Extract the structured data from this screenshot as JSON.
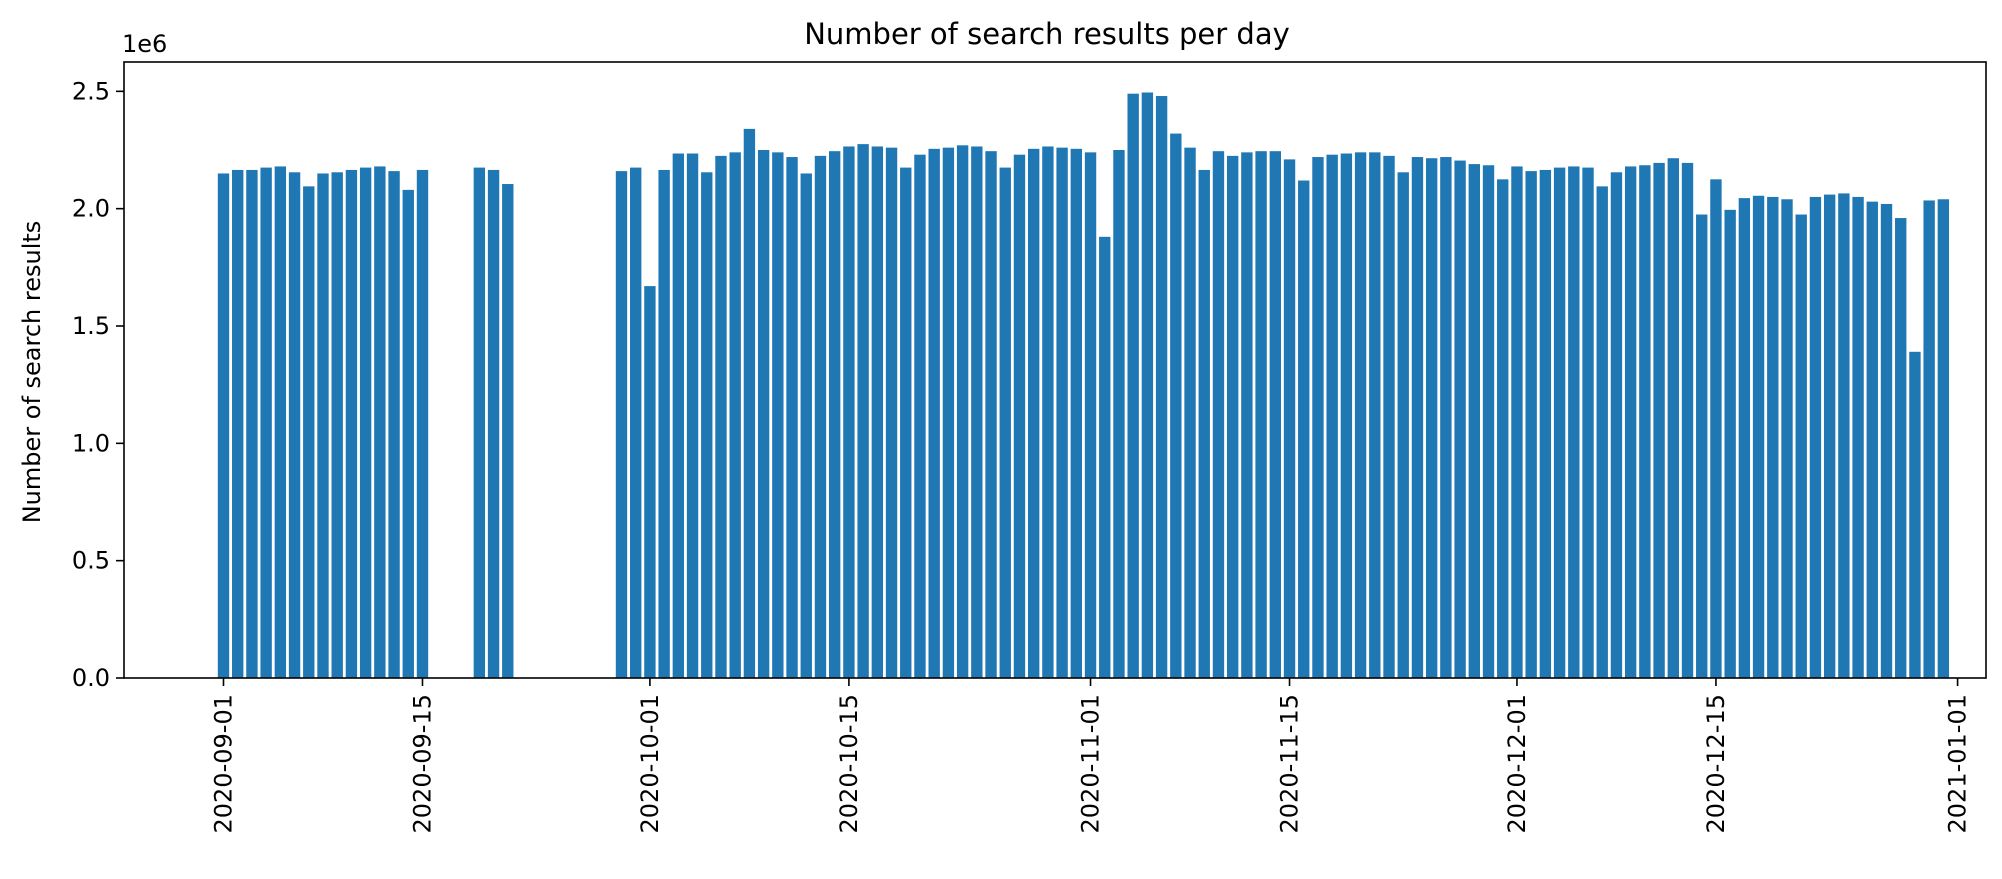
{
  "chart_data": {
    "type": "bar",
    "title": "Number of search results per day",
    "xlabel": "",
    "ylabel": "Number of search results",
    "y_offset_label": "1e6",
    "ylim": [
      0,
      2625000
    ],
    "xlim": [
      "2020-08-25",
      "2021-01-03"
    ],
    "grid": false,
    "bar_color": "#1f77b4",
    "x_ticks": [
      "2020-09-01",
      "2020-09-15",
      "2020-10-01",
      "2020-10-15",
      "2020-11-01",
      "2020-11-15",
      "2020-12-01",
      "2020-12-15",
      "2021-01-01"
    ],
    "y_ticks": [
      0,
      500000,
      1000000,
      1500000,
      2000000,
      2500000
    ],
    "y_tick_labels": [
      "0.0",
      "0.5",
      "1.0",
      "1.5",
      "2.0",
      "2.5"
    ],
    "points": [
      [
        "2020-09-01",
        2150000
      ],
      [
        "2020-09-02",
        2165000
      ],
      [
        "2020-09-03",
        2165000
      ],
      [
        "2020-09-04",
        2175000
      ],
      [
        "2020-09-05",
        2180000
      ],
      [
        "2020-09-06",
        2155000
      ],
      [
        "2020-09-07",
        2095000
      ],
      [
        "2020-09-08",
        2150000
      ],
      [
        "2020-09-09",
        2155000
      ],
      [
        "2020-09-10",
        2165000
      ],
      [
        "2020-09-11",
        2175000
      ],
      [
        "2020-09-12",
        2180000
      ],
      [
        "2020-09-13",
        2160000
      ],
      [
        "2020-09-14",
        2080000
      ],
      [
        "2020-09-15",
        2165000
      ],
      [
        "2020-09-19",
        2175000
      ],
      [
        "2020-09-20",
        2165000
      ],
      [
        "2020-09-21",
        2105000
      ],
      [
        "2020-09-29",
        2160000
      ],
      [
        "2020-09-30",
        2175000
      ],
      [
        "2020-10-01",
        1670000
      ],
      [
        "2020-10-02",
        2165000
      ],
      [
        "2020-10-03",
        2235000
      ],
      [
        "2020-10-04",
        2235000
      ],
      [
        "2020-10-05",
        2155000
      ],
      [
        "2020-10-06",
        2225000
      ],
      [
        "2020-10-07",
        2240000
      ],
      [
        "2020-10-08",
        2340000
      ],
      [
        "2020-10-09",
        2250000
      ],
      [
        "2020-10-10",
        2240000
      ],
      [
        "2020-10-11",
        2220000
      ],
      [
        "2020-10-12",
        2150000
      ],
      [
        "2020-10-13",
        2225000
      ],
      [
        "2020-10-14",
        2245000
      ],
      [
        "2020-10-15",
        2265000
      ],
      [
        "2020-10-16",
        2275000
      ],
      [
        "2020-10-17",
        2265000
      ],
      [
        "2020-10-18",
        2260000
      ],
      [
        "2020-10-19",
        2175000
      ],
      [
        "2020-10-20",
        2230000
      ],
      [
        "2020-10-21",
        2255000
      ],
      [
        "2020-10-22",
        2260000
      ],
      [
        "2020-10-23",
        2270000
      ],
      [
        "2020-10-24",
        2265000
      ],
      [
        "2020-10-25",
        2245000
      ],
      [
        "2020-10-26",
        2175000
      ],
      [
        "2020-10-27",
        2230000
      ],
      [
        "2020-10-28",
        2255000
      ],
      [
        "2020-10-29",
        2265000
      ],
      [
        "2020-10-30",
        2260000
      ],
      [
        "2020-10-31",
        2255000
      ],
      [
        "2020-11-01",
        2240000
      ],
      [
        "2020-11-02",
        1880000
      ],
      [
        "2020-11-03",
        2250000
      ],
      [
        "2020-11-04",
        2490000
      ],
      [
        "2020-11-05",
        2495000
      ],
      [
        "2020-11-06",
        2480000
      ],
      [
        "2020-11-07",
        2320000
      ],
      [
        "2020-11-08",
        2260000
      ],
      [
        "2020-11-09",
        2165000
      ],
      [
        "2020-11-10",
        2245000
      ],
      [
        "2020-11-11",
        2225000
      ],
      [
        "2020-11-12",
        2240000
      ],
      [
        "2020-11-13",
        2245000
      ],
      [
        "2020-11-14",
        2245000
      ],
      [
        "2020-11-15",
        2210000
      ],
      [
        "2020-11-16",
        2120000
      ],
      [
        "2020-11-17",
        2220000
      ],
      [
        "2020-11-18",
        2230000
      ],
      [
        "2020-11-19",
        2235000
      ],
      [
        "2020-11-20",
        2240000
      ],
      [
        "2020-11-21",
        2240000
      ],
      [
        "2020-11-22",
        2225000
      ],
      [
        "2020-11-23",
        2155000
      ],
      [
        "2020-11-24",
        2220000
      ],
      [
        "2020-11-25",
        2215000
      ],
      [
        "2020-11-26",
        2220000
      ],
      [
        "2020-11-27",
        2205000
      ],
      [
        "2020-11-28",
        2190000
      ],
      [
        "2020-11-29",
        2185000
      ],
      [
        "2020-11-30",
        2125000
      ],
      [
        "2020-12-01",
        2180000
      ],
      [
        "2020-12-02",
        2160000
      ],
      [
        "2020-12-03",
        2165000
      ],
      [
        "2020-12-04",
        2175000
      ],
      [
        "2020-12-05",
        2180000
      ],
      [
        "2020-12-06",
        2175000
      ],
      [
        "2020-12-07",
        2095000
      ],
      [
        "2020-12-08",
        2155000
      ],
      [
        "2020-12-09",
        2180000
      ],
      [
        "2020-12-10",
        2185000
      ],
      [
        "2020-12-11",
        2195000
      ],
      [
        "2020-12-12",
        2215000
      ],
      [
        "2020-12-13",
        2195000
      ],
      [
        "2020-12-14",
        1975000
      ],
      [
        "2020-12-15",
        2125000
      ],
      [
        "2020-12-16",
        1995000
      ],
      [
        "2020-12-17",
        2045000
      ],
      [
        "2020-12-18",
        2055000
      ],
      [
        "2020-12-19",
        2050000
      ],
      [
        "2020-12-20",
        2040000
      ],
      [
        "2020-12-21",
        1975000
      ],
      [
        "2020-12-22",
        2050000
      ],
      [
        "2020-12-23",
        2060000
      ],
      [
        "2020-12-24",
        2065000
      ],
      [
        "2020-12-25",
        2050000
      ],
      [
        "2020-12-26",
        2030000
      ],
      [
        "2020-12-27",
        2020000
      ],
      [
        "2020-12-28",
        1960000
      ],
      [
        "2020-12-29",
        1390000
      ],
      [
        "2020-12-30",
        2035000
      ],
      [
        "2020-12-31",
        2040000
      ]
    ]
  }
}
